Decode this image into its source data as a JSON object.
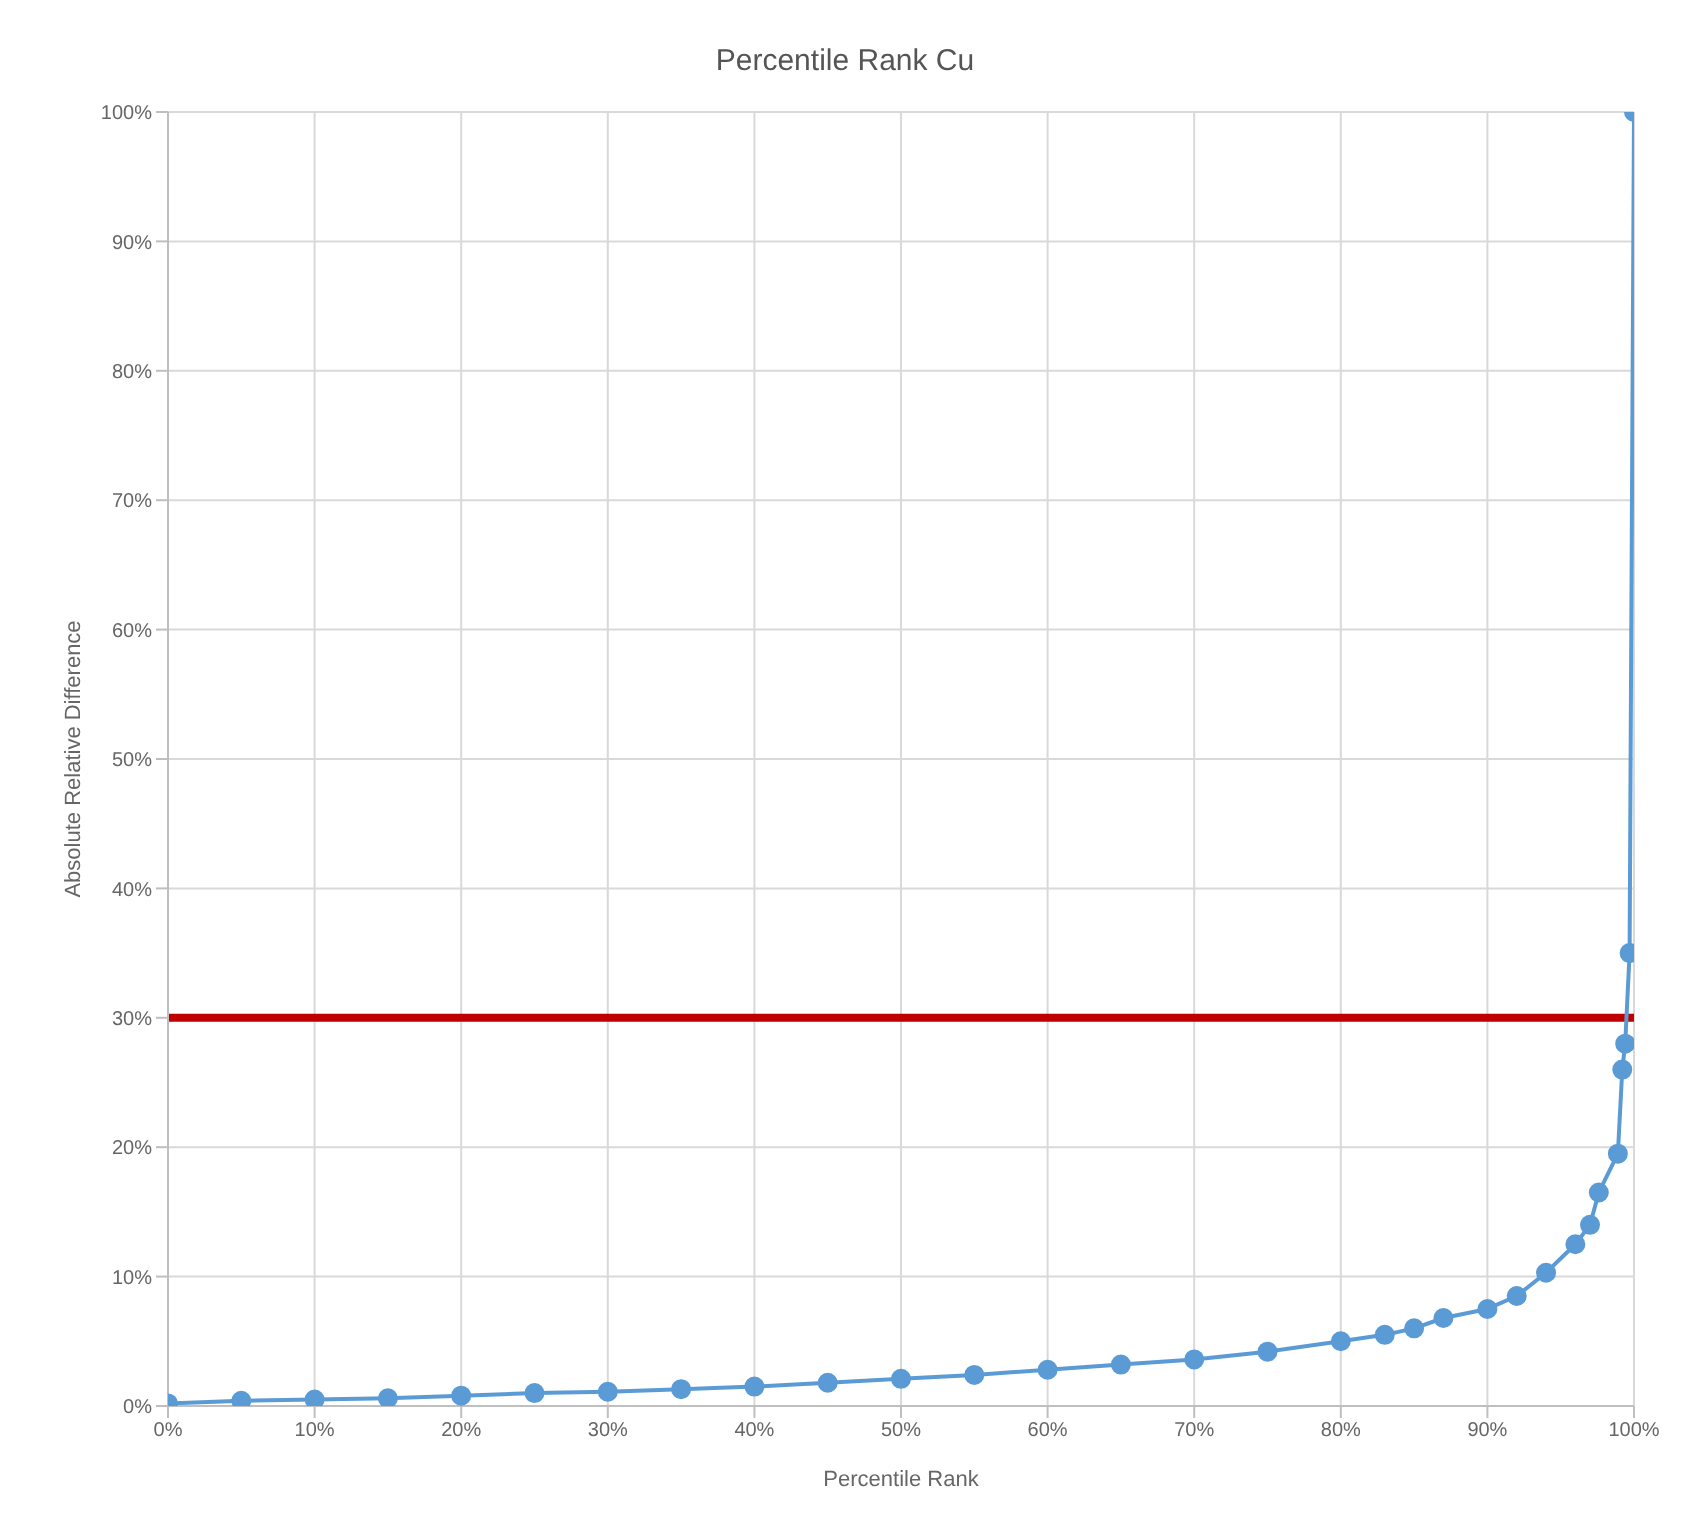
{
  "chart_data": {
    "type": "line",
    "title": "Percentile Rank Cu",
    "xlabel": "Percentile Rank",
    "ylabel": "Absolute Relative Difference",
    "x": [
      0,
      5,
      10,
      15,
      20,
      25,
      30,
      35,
      40,
      45,
      50,
      55,
      60,
      65,
      70,
      75,
      80,
      83,
      85,
      87,
      90,
      92,
      94,
      96,
      97,
      97.6,
      98.9,
      99.2,
      99.4,
      99.7,
      100
    ],
    "series": [
      {
        "color": "#5b9bd5",
        "values": [
          0.2,
          0.4,
          0.5,
          0.6,
          0.8,
          1.0,
          1.1,
          1.3,
          1.5,
          1.8,
          2.1,
          2.4,
          2.8,
          3.2,
          3.6,
          4.2,
          5.0,
          5.5,
          6.0,
          6.8,
          7.5,
          8.5,
          10.3,
          12.5,
          14,
          16.5,
          19.5,
          26,
          28,
          35,
          100
        ]
      }
    ],
    "xlim": [
      0,
      100
    ],
    "xticks": [
      {
        "value": 0,
        "label": "0%"
      },
      {
        "value": 10,
        "label": "10%"
      },
      {
        "value": 20,
        "label": "20%"
      },
      {
        "value": 30,
        "label": "30%"
      },
      {
        "value": 40,
        "label": "40%"
      },
      {
        "value": 50,
        "label": "50%"
      },
      {
        "value": 60,
        "label": "60%"
      },
      {
        "value": 70,
        "label": "70%"
      },
      {
        "value": 80,
        "label": "80%"
      },
      {
        "value": 90,
        "label": "90%"
      },
      {
        "value": 100,
        "label": "100%"
      }
    ],
    "ylim": [
      0,
      100
    ],
    "yticks": [
      {
        "value": 0,
        "label": "0%"
      },
      {
        "value": 10,
        "label": "10%"
      },
      {
        "value": 20,
        "label": "20%"
      },
      {
        "value": 30,
        "label": "30%"
      },
      {
        "value": 40,
        "label": "40%"
      },
      {
        "value": 50,
        "label": "50%"
      },
      {
        "value": 60,
        "label": "60%"
      },
      {
        "value": 70,
        "label": "70%"
      },
      {
        "value": 80,
        "label": "80%"
      },
      {
        "value": 90,
        "label": "90%"
      },
      {
        "value": 100,
        "label": "100%"
      }
    ],
    "ref_lines": [
      {
        "axis": "y",
        "value": 30,
        "color": "#c00000"
      }
    ],
    "grid": true,
    "marker": "circle",
    "line_style": "solid"
  }
}
